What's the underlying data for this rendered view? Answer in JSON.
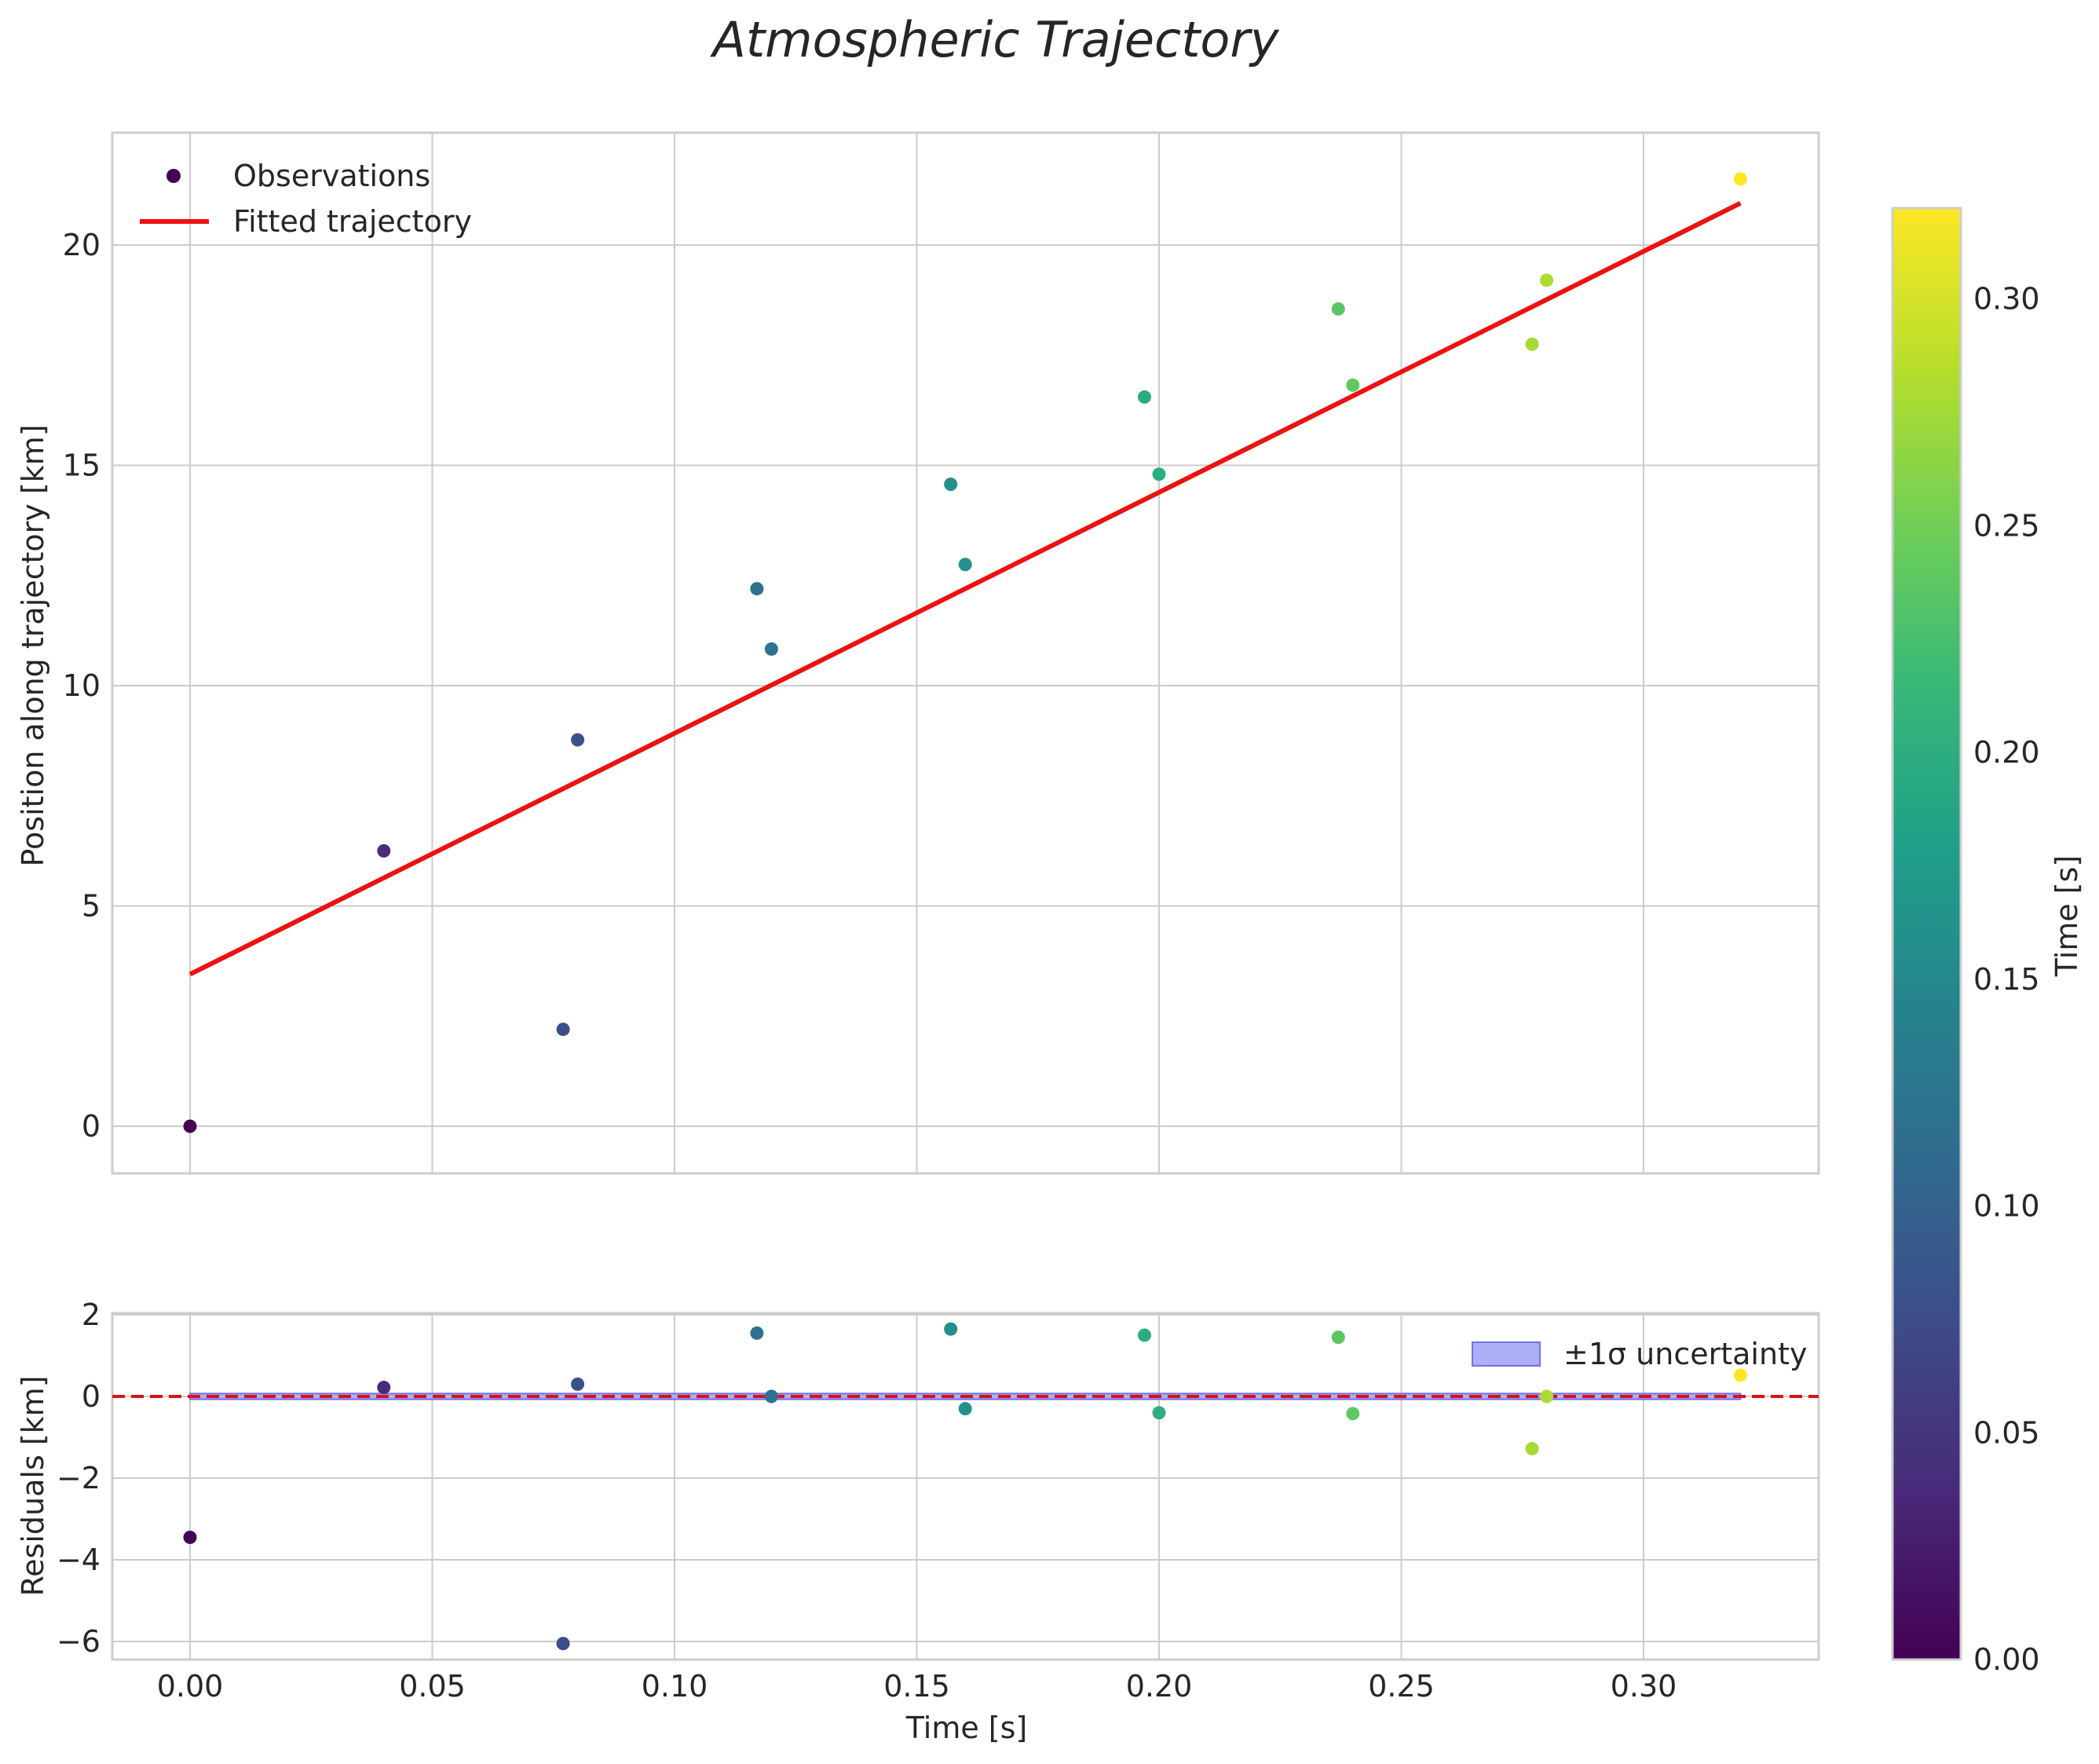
{
  "chart_data": {
    "type": "scatter",
    "title": "Atmospheric Trajectory",
    "xlabel": "Time [s]",
    "xlim": [
      -0.016,
      0.336
    ],
    "xticks": [
      0.0,
      0.05,
      0.1,
      0.15,
      0.2,
      0.25,
      0.3
    ],
    "xtick_labels": [
      "0.00",
      "0.05",
      "0.10",
      "0.15",
      "0.20",
      "0.25",
      "0.30"
    ],
    "main": {
      "ylabel": "Position along trajectory [km]",
      "ylim": [
        -1.1,
        22.6
      ],
      "yticks": [
        0,
        5,
        10,
        15,
        20
      ],
      "ytick_labels": [
        "0",
        "5",
        "10",
        "15",
        "20"
      ],
      "legend": {
        "position": "upper-left",
        "observations": "Observations",
        "fit": "Fitted trajectory"
      },
      "observations": [
        {
          "t": 0.0,
          "y": 0.0
        },
        {
          "t": 0.04,
          "y": 6.25
        },
        {
          "t": 0.077,
          "y": 2.2
        },
        {
          "t": 0.08,
          "y": 8.77
        },
        {
          "t": 0.117,
          "y": 12.2
        },
        {
          "t": 0.12,
          "y": 10.83
        },
        {
          "t": 0.157,
          "y": 14.57
        },
        {
          "t": 0.16,
          "y": 12.75
        },
        {
          "t": 0.197,
          "y": 16.55
        },
        {
          "t": 0.2,
          "y": 14.8
        },
        {
          "t": 0.237,
          "y": 18.55
        },
        {
          "t": 0.24,
          "y": 16.82
        },
        {
          "t": 0.277,
          "y": 17.75
        },
        {
          "t": 0.28,
          "y": 19.2
        },
        {
          "t": 0.32,
          "y": 21.5
        }
      ],
      "fit_line": {
        "t": [
          0.0,
          0.32
        ],
        "y": [
          3.45,
          20.95
        ],
        "color": "#ee1111"
      }
    },
    "residuals": {
      "ylabel": "Residuals [km]",
      "ylim": [
        -6.5,
        2.1
      ],
      "yticks": [
        -6,
        -4,
        -2,
        0,
        2
      ],
      "ytick_labels": [
        "−6",
        "−4",
        "−2",
        "0",
        "2"
      ],
      "legend": {
        "position": "upper-right",
        "band": "±1σ uncertainty"
      },
      "sigma": 0.07,
      "points": [
        {
          "t": 0.0,
          "r": -3.45
        },
        {
          "t": 0.04,
          "r": 0.22
        },
        {
          "t": 0.077,
          "r": -6.05
        },
        {
          "t": 0.08,
          "r": 0.3
        },
        {
          "t": 0.117,
          "r": 1.55
        },
        {
          "t": 0.12,
          "r": 0.0
        },
        {
          "t": 0.157,
          "r": 1.65
        },
        {
          "t": 0.16,
          "r": -0.3
        },
        {
          "t": 0.197,
          "r": 1.5
        },
        {
          "t": 0.2,
          "r": -0.4
        },
        {
          "t": 0.237,
          "r": 1.45
        },
        {
          "t": 0.24,
          "r": -0.42
        },
        {
          "t": 0.277,
          "r": -1.28
        },
        {
          "t": 0.28,
          "r": 0.0
        },
        {
          "t": 0.32,
          "r": 0.52
        }
      ]
    },
    "colorbar": {
      "label": "Time [s]",
      "colormap": "viridis",
      "range": [
        0.0,
        0.32
      ],
      "ticks": [
        0.0,
        0.05,
        0.1,
        0.15,
        0.2,
        0.25,
        0.3
      ],
      "tick_labels": [
        "0.00",
        "0.05",
        "0.10",
        "0.15",
        "0.20",
        "0.25",
        "0.30"
      ]
    },
    "colors": {
      "fit": "#ee1111",
      "zero_line": "#dd1111",
      "band_fill": "#aeaef7",
      "band_edge": "#7070e8",
      "grid": "#cccccc",
      "frame": "#cccccc"
    }
  }
}
